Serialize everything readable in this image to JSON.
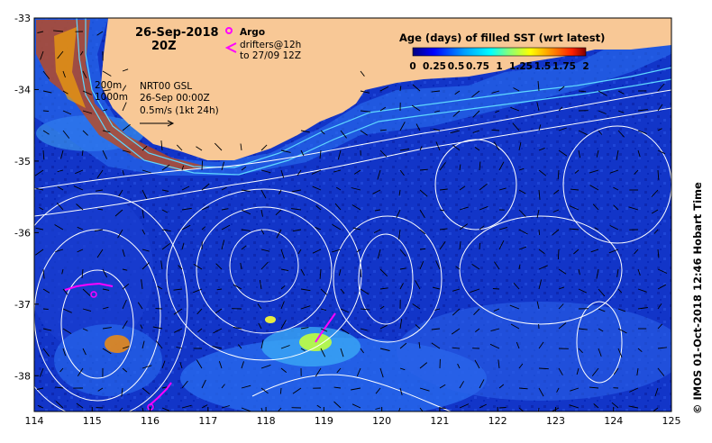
{
  "header": {
    "date": "26-Sep-2018",
    "time": "20Z"
  },
  "legend": {
    "argo_label": "Argo",
    "drifters_label": "drifters@12h",
    "drifters_to": "to 27/09 12Z",
    "argo_color": "#ff00ff",
    "drifter_color": "#ff00ff"
  },
  "bathymetry": {
    "label_200": "200m",
    "label_1000": "1000m"
  },
  "currents": {
    "product": "NRT00 GSL",
    "product_time": "26-Sep 00:00Z",
    "scale": "0.5m/s (1kt 24h)"
  },
  "colorbar": {
    "title": "Age (days) of filled SST (wrt latest)",
    "ticks": [
      "0",
      "0.25",
      "0.5",
      "0.75",
      "1",
      "1.25",
      "1.5",
      "1.75",
      "2"
    ]
  },
  "credit": "© IMOS 01-Oct-2018 12:46 Hobart Time",
  "axes": {
    "x_ticks": [
      "114",
      "115",
      "116",
      "117",
      "118",
      "119",
      "120",
      "121",
      "122",
      "123",
      "124",
      "125"
    ],
    "y_ticks": [
      "-33",
      "-34",
      "-35",
      "-36",
      "-37",
      "-38"
    ],
    "x_range": [
      114,
      125
    ],
    "y_range": [
      -38.5,
      -33
    ]
  },
  "colors": {
    "land": "#f8c896",
    "sea_base": "#1030c0",
    "sea_light": "#2060e0",
    "contour": "#ffffff",
    "shelf": "#40c8e0"
  }
}
